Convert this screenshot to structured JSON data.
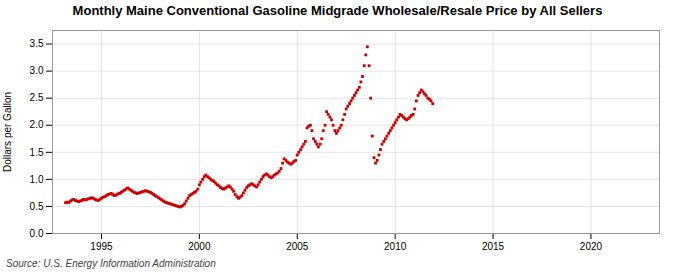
{
  "chart_data": {
    "type": "scatter",
    "title": "Monthly Maine Conventional Gasoline Midgrade Wholesale/Resale Price by All Sellers",
    "ylabel": "Dollars per Gallon",
    "source": "Source: U.S. Energy Information Administration",
    "color": "#CC0000",
    "marker": "square",
    "grid": true,
    "xlim": [
      1992.5,
      2023.5
    ],
    "xticks": [
      1995,
      2000,
      2005,
      2010,
      2015,
      2020
    ],
    "ylim": [
      0.0,
      3.75
    ],
    "yticks": [
      {
        "value": 0.0,
        "label": "0.0"
      },
      0.5,
      {
        "value": 1.0,
        "label": "1.0"
      },
      1.5,
      {
        "value": 2.0,
        "label": "2.0"
      },
      2.5,
      {
        "value": 3.0,
        "label": "3.0"
      },
      3.5
    ],
    "x": [
      1993.17,
      1993.25,
      1993.33,
      1993.42,
      1993.5,
      1993.58,
      1993.67,
      1993.75,
      1993.83,
      1993.92,
      1994.0,
      1994.08,
      1994.17,
      1994.25,
      1994.33,
      1994.42,
      1994.5,
      1994.58,
      1994.67,
      1994.75,
      1994.83,
      1994.92,
      1995.0,
      1995.08,
      1995.17,
      1995.25,
      1995.33,
      1995.42,
      1995.5,
      1995.58,
      1995.67,
      1995.75,
      1995.83,
      1995.92,
      1996.0,
      1996.08,
      1996.17,
      1996.25,
      1996.33,
      1996.42,
      1996.5,
      1996.58,
      1996.67,
      1996.75,
      1996.83,
      1996.92,
      1997.0,
      1997.08,
      1997.17,
      1997.25,
      1997.33,
      1997.42,
      1997.5,
      1997.58,
      1997.67,
      1997.75,
      1997.83,
      1997.92,
      1998.0,
      1998.08,
      1998.17,
      1998.25,
      1998.33,
      1998.42,
      1998.5,
      1998.58,
      1998.67,
      1998.75,
      1998.83,
      1998.92,
      1999.0,
      1999.08,
      1999.17,
      1999.25,
      1999.33,
      1999.42,
      1999.5,
      1999.58,
      1999.67,
      1999.75,
      1999.83,
      1999.92,
      2000.0,
      2000.08,
      2000.17,
      2000.25,
      2000.33,
      2000.42,
      2000.5,
      2000.58,
      2000.67,
      2000.75,
      2000.83,
      2000.92,
      2001.0,
      2001.08,
      2001.17,
      2001.25,
      2001.33,
      2001.42,
      2001.5,
      2001.58,
      2001.67,
      2001.75,
      2001.83,
      2001.92,
      2002.0,
      2002.08,
      2002.17,
      2002.25,
      2002.33,
      2002.42,
      2002.5,
      2002.58,
      2002.67,
      2002.75,
      2002.83,
      2002.92,
      2003.0,
      2003.08,
      2003.17,
      2003.25,
      2003.33,
      2003.42,
      2003.5,
      2003.58,
      2003.67,
      2003.75,
      2003.83,
      2003.92,
      2004.0,
      2004.08,
      2004.17,
      2004.25,
      2004.33,
      2004.42,
      2004.5,
      2004.58,
      2004.67,
      2004.75,
      2004.83,
      2004.92,
      2005.0,
      2005.08,
      2005.17,
      2005.25,
      2005.33,
      2005.42,
      2005.5,
      2005.58,
      2005.67,
      2005.75,
      2005.83,
      2005.92,
      2006.0,
      2006.08,
      2006.17,
      2006.25,
      2006.33,
      2006.42,
      2006.5,
      2006.58,
      2006.67,
      2006.75,
      2006.83,
      2006.92,
      2007.0,
      2007.08,
      2007.17,
      2007.25,
      2007.33,
      2007.42,
      2007.5,
      2007.58,
      2007.67,
      2007.75,
      2007.83,
      2007.92,
      2008.0,
      2008.08,
      2008.17,
      2008.25,
      2008.33,
      2008.42,
      2008.5,
      2008.58,
      2008.67,
      2008.75,
      2008.83,
      2008.92,
      2009.0,
      2009.08,
      2009.17,
      2009.25,
      2009.33,
      2009.42,
      2009.5,
      2009.58,
      2009.67,
      2009.75,
      2009.83,
      2009.92,
      2010.0,
      2010.08,
      2010.17,
      2010.25,
      2010.33,
      2010.42,
      2010.5,
      2010.58,
      2010.67,
      2010.75,
      2010.83,
      2010.92,
      2011.0,
      2011.08,
      2011.17,
      2011.25,
      2011.33,
      2011.42,
      2011.5,
      2011.58,
      2011.67,
      2011.75,
      2011.83,
      2011.92
    ],
    "values": [
      0.57,
      0.58,
      0.57,
      0.6,
      0.62,
      0.63,
      0.61,
      0.6,
      0.59,
      0.6,
      0.61,
      0.63,
      0.62,
      0.63,
      0.64,
      0.65,
      0.66,
      0.65,
      0.63,
      0.62,
      0.61,
      0.63,
      0.65,
      0.67,
      0.68,
      0.7,
      0.72,
      0.73,
      0.74,
      0.72,
      0.7,
      0.71,
      0.73,
      0.74,
      0.76,
      0.78,
      0.8,
      0.82,
      0.84,
      0.82,
      0.8,
      0.78,
      0.76,
      0.75,
      0.74,
      0.75,
      0.76,
      0.77,
      0.78,
      0.79,
      0.78,
      0.77,
      0.76,
      0.74,
      0.72,
      0.7,
      0.68,
      0.66,
      0.64,
      0.62,
      0.6,
      0.58,
      0.57,
      0.56,
      0.55,
      0.54,
      0.53,
      0.52,
      0.51,
      0.5,
      0.49,
      0.5,
      0.52,
      0.55,
      0.6,
      0.65,
      0.7,
      0.72,
      0.74,
      0.76,
      0.78,
      0.82,
      0.9,
      0.95,
      1.0,
      1.05,
      1.08,
      1.05,
      1.03,
      1.0,
      0.98,
      0.96,
      0.93,
      0.9,
      0.88,
      0.85,
      0.83,
      0.82,
      0.84,
      0.86,
      0.88,
      0.86,
      0.82,
      0.78,
      0.72,
      0.68,
      0.65,
      0.67,
      0.7,
      0.75,
      0.8,
      0.85,
      0.88,
      0.9,
      0.92,
      0.9,
      0.88,
      0.86,
      0.9,
      0.95,
      1.0,
      1.05,
      1.08,
      1.1,
      1.08,
      1.05,
      1.03,
      1.05,
      1.08,
      1.1,
      1.12,
      1.15,
      1.2,
      1.3,
      1.38,
      1.35,
      1.32,
      1.3,
      1.28,
      1.3,
      1.33,
      1.35,
      1.45,
      1.5,
      1.55,
      1.6,
      1.65,
      1.7,
      1.95,
      1.98,
      2.0,
      1.9,
      1.75,
      1.7,
      1.65,
      1.6,
      1.65,
      1.75,
      1.9,
      2.0,
      2.25,
      2.2,
      2.15,
      2.1,
      2.0,
      1.9,
      1.85,
      1.9,
      1.95,
      2.0,
      2.1,
      2.2,
      2.3,
      2.35,
      2.4,
      2.45,
      2.5,
      2.55,
      2.6,
      2.65,
      2.7,
      2.8,
      2.9,
      3.1,
      3.3,
      3.45,
      3.1,
      2.5,
      1.8,
      1.4,
      1.3,
      1.35,
      1.45,
      1.55,
      1.65,
      1.7,
      1.75,
      1.8,
      1.85,
      1.9,
      1.95,
      2.0,
      2.05,
      2.1,
      2.15,
      2.2,
      2.18,
      2.15,
      2.12,
      2.1,
      2.12,
      2.15,
      2.18,
      2.2,
      2.3,
      2.45,
      2.55,
      2.6,
      2.65,
      2.62,
      2.58,
      2.55,
      2.5,
      2.48,
      2.45,
      2.4
    ]
  }
}
